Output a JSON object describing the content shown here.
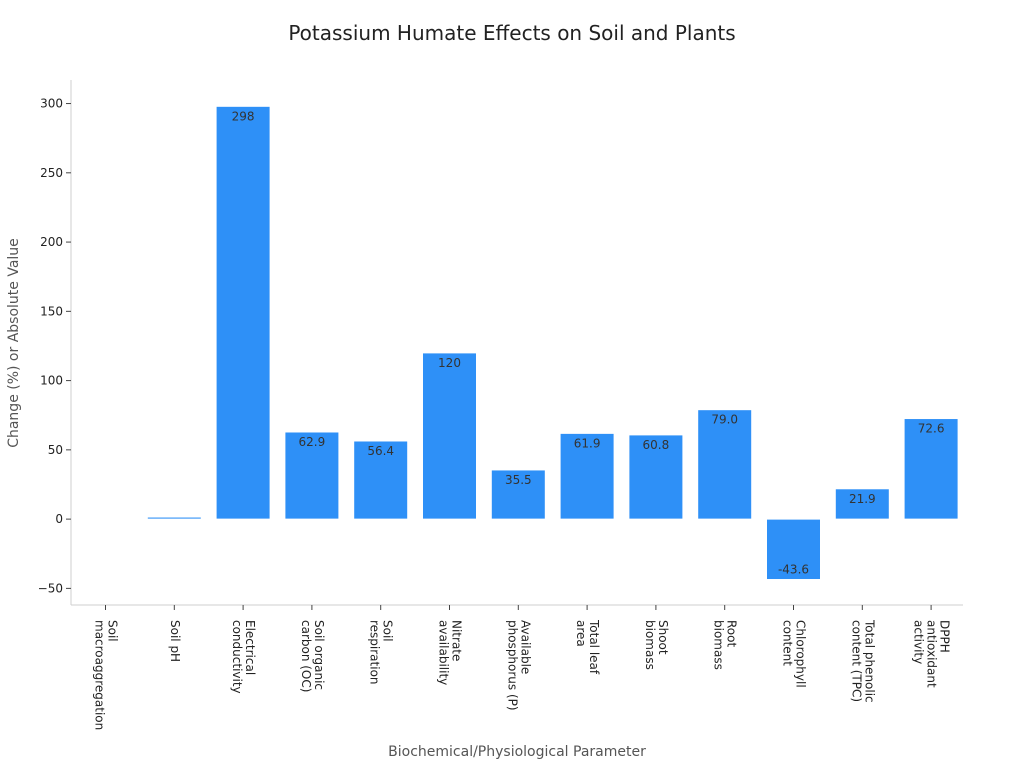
{
  "chart_data": {
    "type": "bar",
    "title": "Potassium Humate Effects on Soil and Plants",
    "xlabel": "Biochemical/Physiological Parameter",
    "ylabel": "Change (%) or Absolute Value",
    "ylim": [
      -62,
      317
    ],
    "yticks": [
      -50,
      0,
      50,
      100,
      150,
      200,
      250,
      300
    ],
    "ytick_labels": [
      "−50",
      "0",
      "50",
      "100",
      "150",
      "200",
      "250",
      "300"
    ],
    "grid": false,
    "categories": [
      [
        "Soil",
        "macroaggregation"
      ],
      [
        "Soil pH"
      ],
      [
        "Electrical",
        "conductivity"
      ],
      [
        "Soil organic",
        "carbon (OC)"
      ],
      [
        "Soil",
        "respiration"
      ],
      [
        "Nitrate",
        "availability"
      ],
      [
        "Available",
        "phosphorus (P)"
      ],
      [
        "Total leaf",
        "area"
      ],
      [
        "Shoot",
        "biomass"
      ],
      [
        "Root",
        "biomass"
      ],
      [
        "Chlorophyll",
        "content"
      ],
      [
        "Total phenolic",
        "content (TPC)"
      ],
      [
        "DPPH",
        "antioxidant",
        "activity"
      ]
    ],
    "values": [
      0.3,
      1.5,
      298,
      62.9,
      56.4,
      120,
      35.5,
      61.9,
      60.8,
      79.0,
      -43.6,
      21.9,
      72.6
    ],
    "data_labels": [
      "",
      "",
      "298",
      "62.9",
      "56.4",
      "120",
      "35.5",
      "61.9",
      "60.8",
      "79.0",
      "-43.6",
      "21.9",
      "72.6"
    ],
    "colors": [
      "#a6cdee",
      "#2e90f7",
      "#2e90f7",
      "#2e90f7",
      "#2e90f7",
      "#2e90f7",
      "#2e90f7",
      "#2e90f7",
      "#2e90f7",
      "#2e90f7",
      "#2e90f7",
      "#2e90f7",
      "#2e90f7"
    ]
  }
}
